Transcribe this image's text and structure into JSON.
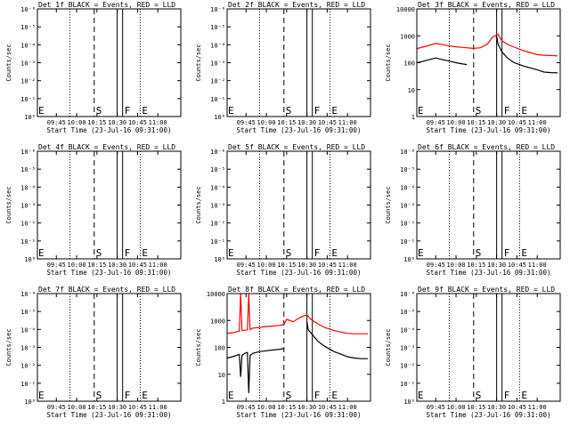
{
  "chart_data": [
    {
      "type": "line",
      "title": "Det 1f BLACK = Events, RED = LLD",
      "ylabel": "Counts/sec",
      "xlabel": "Start Time (23-Jul-16 09:31:00)",
      "xlim": [
        "09:31",
        "11:17"
      ],
      "y_scale": "log",
      "ylim": [
        1,
        10000
      ],
      "y_tick_labels": [
        "10⁰",
        "10⁻¹",
        "10⁻²",
        "10⁻³",
        "10⁻⁴",
        "10⁻⁵",
        "10⁻⁶"
      ],
      "x_tick_labels": [
        "09:45",
        "10:00",
        "10:15",
        "10:30",
        "10:45",
        "11:00"
      ],
      "markers": [
        {
          "time": "09:31",
          "label": "E",
          "style": "none"
        },
        {
          "time": "09:55",
          "label": "",
          "style": "dotted"
        },
        {
          "time": "10:13",
          "label": "S",
          "style": "dashed"
        },
        {
          "time": "10:30",
          "label": "",
          "style": "solid"
        },
        {
          "time": "10:34",
          "label": "F",
          "style": "solid"
        },
        {
          "time": "10:47",
          "label": "E",
          "style": "dotted"
        }
      ],
      "series": []
    },
    {
      "type": "line",
      "title": "Det 2f BLACK = Events, RED = LLD",
      "ylabel": "Counts/sec",
      "xlabel": "Start Time (23-Jul-16 09:31:00)",
      "xlim": [
        "09:31",
        "11:17"
      ],
      "y_scale": "log",
      "ylim": [
        1,
        10000
      ],
      "y_tick_labels": [
        "10⁰",
        "10⁻¹",
        "10⁻²",
        "10⁻³",
        "10⁻⁴",
        "10⁻⁵",
        "10⁻⁶"
      ],
      "x_tick_labels": [
        "09:45",
        "10:00",
        "10:15",
        "10:30",
        "10:45",
        "11:00"
      ],
      "markers": [
        {
          "time": "09:31",
          "label": "E",
          "style": "none"
        },
        {
          "time": "09:55",
          "label": "",
          "style": "dotted"
        },
        {
          "time": "10:13",
          "label": "S",
          "style": "dashed"
        },
        {
          "time": "10:30",
          "label": "",
          "style": "solid"
        },
        {
          "time": "10:34",
          "label": "F",
          "style": "solid"
        },
        {
          "time": "10:47",
          "label": "E",
          "style": "dotted"
        }
      ],
      "series": []
    },
    {
      "type": "line",
      "title": "Det 3f BLACK = Events, RED = LLD",
      "ylabel": "Counts/sec",
      "xlabel": "Start Time (23-Jul-16 09:31:00)",
      "xlim": [
        "09:31",
        "11:17"
      ],
      "y_scale": "log",
      "ylim": [
        1,
        10000
      ],
      "y_tick_labels": [
        "1",
        "10",
        "100",
        "1000",
        "10000"
      ],
      "x_tick_labels": [
        "09:45",
        "10:00",
        "10:15",
        "10:30",
        "10:45",
        "11:00"
      ],
      "markers": [
        {
          "time": "09:31",
          "label": "E",
          "style": "none"
        },
        {
          "time": "09:55",
          "label": "",
          "style": "dotted"
        },
        {
          "time": "10:13",
          "label": "S",
          "style": "dashed"
        },
        {
          "time": "10:30",
          "label": "",
          "style": "solid"
        },
        {
          "time": "10:34",
          "label": "F",
          "style": "solid"
        },
        {
          "time": "10:47",
          "label": "E",
          "style": "dotted"
        }
      ],
      "series": [
        {
          "color": "#ff0000",
          "x": [
            "09:31",
            "09:35",
            "09:40",
            "09:45",
            "09:50",
            "09:55",
            "10:00",
            "10:05",
            "10:10",
            "10:13",
            "10:18",
            "10:23",
            "10:27",
            "10:29",
            "10:31",
            "10:34",
            "10:38",
            "10:43",
            "10:50",
            "11:00",
            "11:05",
            "11:10",
            "11:15"
          ],
          "y": [
            330,
            380,
            440,
            520,
            470,
            420,
            390,
            370,
            350,
            340,
            360,
            480,
            900,
            1000,
            1150,
            650,
            480,
            380,
            280,
            200,
            190,
            185,
            180
          ]
        },
        {
          "color": "#000000",
          "x": [
            "09:31",
            "09:35",
            "09:40",
            "09:45",
            "09:50",
            "09:55",
            "10:00",
            "10:05",
            "10:08"
          ],
          "y": [
            100,
            110,
            130,
            150,
            130,
            115,
            100,
            90,
            85
          ]
        },
        {
          "color": "#000000",
          "x": [
            "10:30",
            "10:31",
            "10:34",
            "10:38",
            "10:43",
            "10:50",
            "11:00",
            "11:05",
            "11:10",
            "11:15"
          ],
          "y": [
            1000,
            500,
            250,
            150,
            100,
            75,
            55,
            45,
            43,
            42
          ]
        }
      ]
    },
    {
      "type": "line",
      "title": "Det 4f BLACK = Events, RED = LLD",
      "ylabel": "Counts/sec",
      "xlabel": "Start Time (23-Jul-16 09:31:00)",
      "xlim": [
        "09:31",
        "11:17"
      ],
      "y_scale": "log",
      "ylim": [
        1,
        10000
      ],
      "y_tick_labels": [
        "10⁰",
        "10⁻¹",
        "10⁻²",
        "10⁻³",
        "10⁻⁴",
        "10⁻⁵",
        "10⁻⁶"
      ],
      "x_tick_labels": [
        "09:45",
        "10:00",
        "10:15",
        "10:30",
        "10:45",
        "11:00"
      ],
      "markers": [
        {
          "time": "09:31",
          "label": "E",
          "style": "none"
        },
        {
          "time": "09:55",
          "label": "",
          "style": "dotted"
        },
        {
          "time": "10:13",
          "label": "S",
          "style": "dashed"
        },
        {
          "time": "10:30",
          "label": "",
          "style": "solid"
        },
        {
          "time": "10:34",
          "label": "F",
          "style": "solid"
        },
        {
          "time": "10:47",
          "label": "E",
          "style": "dotted"
        }
      ],
      "series": []
    },
    {
      "type": "line",
      "title": "Det 5f BLACK = Events, RED = LLD",
      "ylabel": "Counts/sec",
      "xlabel": "Start Time (23-Jul-16 09:31:00)",
      "xlim": [
        "09:31",
        "11:17"
      ],
      "y_scale": "log",
      "ylim": [
        1,
        10000
      ],
      "y_tick_labels": [
        "10⁰",
        "10⁻¹",
        "10⁻²",
        "10⁻³",
        "10⁻⁴",
        "10⁻⁵",
        "10⁻⁶"
      ],
      "x_tick_labels": [
        "09:45",
        "10:00",
        "10:15",
        "10:30",
        "10:45",
        "11:00"
      ],
      "markers": [
        {
          "time": "09:31",
          "label": "E",
          "style": "none"
        },
        {
          "time": "09:55",
          "label": "",
          "style": "dotted"
        },
        {
          "time": "10:13",
          "label": "S",
          "style": "dashed"
        },
        {
          "time": "10:30",
          "label": "",
          "style": "solid"
        },
        {
          "time": "10:34",
          "label": "F",
          "style": "solid"
        },
        {
          "time": "10:47",
          "label": "E",
          "style": "dotted"
        }
      ],
      "series": []
    },
    {
      "type": "line",
      "title": "Det 6f BLACK = Events, RED = LLD",
      "ylabel": "Counts/sec",
      "xlabel": "Start Time (23-Jul-16 09:31:00)",
      "xlim": [
        "09:31",
        "11:17"
      ],
      "y_scale": "log",
      "ylim": [
        1,
        10000
      ],
      "y_tick_labels": [
        "10⁰",
        "10⁻¹",
        "10⁻²",
        "10⁻³",
        "10⁻⁴",
        "10⁻⁵",
        "10⁻⁶"
      ],
      "x_tick_labels": [
        "09:45",
        "10:00",
        "10:15",
        "10:30",
        "10:45",
        "11:00"
      ],
      "markers": [
        {
          "time": "09:31",
          "label": "E",
          "style": "none"
        },
        {
          "time": "09:55",
          "label": "",
          "style": "dotted"
        },
        {
          "time": "10:13",
          "label": "S",
          "style": "dashed"
        },
        {
          "time": "10:30",
          "label": "",
          "style": "solid"
        },
        {
          "time": "10:34",
          "label": "F",
          "style": "solid"
        },
        {
          "time": "10:47",
          "label": "E",
          "style": "dotted"
        }
      ],
      "series": []
    },
    {
      "type": "line",
      "title": "Det 7f BLACK = Events, RED = LLD",
      "ylabel": "Counts/sec",
      "xlabel": "Start Time (23-Jul-16 09:31:00)",
      "xlim": [
        "09:31",
        "11:17"
      ],
      "y_scale": "log",
      "ylim": [
        1,
        10000
      ],
      "y_tick_labels": [
        "10⁰",
        "10⁻¹",
        "10⁻²",
        "10⁻³",
        "10⁻⁴",
        "10⁻⁵",
        "10⁻⁶"
      ],
      "x_tick_labels": [
        "09:45",
        "10:00",
        "10:15",
        "10:30",
        "10:45",
        "11:00"
      ],
      "markers": [
        {
          "time": "09:31",
          "label": "E",
          "style": "none"
        },
        {
          "time": "09:55",
          "label": "",
          "style": "dotted"
        },
        {
          "time": "10:13",
          "label": "S",
          "style": "dashed"
        },
        {
          "time": "10:30",
          "label": "",
          "style": "solid"
        },
        {
          "time": "10:34",
          "label": "F",
          "style": "solid"
        },
        {
          "time": "10:47",
          "label": "E",
          "style": "dotted"
        }
      ],
      "series": []
    },
    {
      "type": "line",
      "title": "Det 8f BLACK = Events, RED = LLD",
      "ylabel": "Counts/sec",
      "xlabel": "Start Time (23-Jul-16 09:31:00)",
      "xlim": [
        "09:31",
        "11:17"
      ],
      "y_scale": "log",
      "ylim": [
        1,
        10000
      ],
      "y_tick_labels": [
        "1",
        "10",
        "100",
        "1000",
        "10000"
      ],
      "x_tick_labels": [
        "09:45",
        "10:00",
        "10:15",
        "10:30",
        "10:45",
        "11:00"
      ],
      "markers": [
        {
          "time": "09:31",
          "label": "E",
          "style": "none"
        },
        {
          "time": "09:55",
          "label": "",
          "style": "dotted"
        },
        {
          "time": "10:13",
          "label": "S",
          "style": "dashed"
        },
        {
          "time": "10:30",
          "label": "",
          "style": "solid"
        },
        {
          "time": "10:34",
          "label": "F",
          "style": "solid"
        },
        {
          "time": "10:47",
          "label": "E",
          "style": "dotted"
        }
      ],
      "series": [
        {
          "color": "#ff0000",
          "x": [
            "09:31",
            "09:35",
            "09:40",
            "09:41",
            "09:42",
            "09:44",
            "09:46",
            "09:47",
            "09:48",
            "09:50",
            "09:55",
            "10:00",
            "10:05",
            "10:10",
            "10:13",
            "10:15",
            "10:20",
            "10:25",
            "10:28",
            "10:30",
            "10:33",
            "10:38",
            "10:43",
            "10:50",
            "11:00",
            "11:05",
            "11:10",
            "11:15"
          ],
          "y": [
            330,
            350,
            400,
            10000,
            420,
            430,
            450,
            10000,
            460,
            520,
            550,
            600,
            620,
            660,
            700,
            1100,
            900,
            1300,
            1500,
            1600,
            1100,
            750,
            550,
            420,
            330,
            320,
            320,
            320
          ]
        },
        {
          "color": "#000000",
          "x": [
            "09:31",
            "09:35",
            "09:40",
            "09:41",
            "09:42",
            "09:44",
            "09:46",
            "09:47",
            "09:48",
            "09:50",
            "09:55",
            "10:00",
            "10:05",
            "10:10",
            "10:13"
          ],
          "y": [
            40,
            45,
            55,
            8,
            50,
            60,
            65,
            2,
            50,
            60,
            70,
            75,
            80,
            85,
            90
          ]
        },
        {
          "color": "#000000",
          "x": [
            "10:30",
            "10:31",
            "10:34",
            "10:38",
            "10:43",
            "10:50",
            "11:00",
            "11:05",
            "11:10",
            "11:15"
          ],
          "y": [
            900,
            450,
            300,
            170,
            110,
            70,
            45,
            40,
            38,
            38
          ]
        }
      ]
    },
    {
      "type": "line",
      "title": "Det 9f BLACK = Events, RED = LLD",
      "ylabel": "Counts/sec",
      "xlabel": "Start Time (23-Jul-16 09:31:00)",
      "xlim": [
        "09:31",
        "11:17"
      ],
      "y_scale": "log",
      "ylim": [
        1,
        10000
      ],
      "y_tick_labels": [
        "10⁰",
        "10⁻¹",
        "10⁻²",
        "10⁻³",
        "10⁻⁴",
        "10⁻⁵",
        "10⁻⁶"
      ],
      "x_tick_labels": [
        "09:45",
        "10:00",
        "10:15",
        "10:30",
        "10:45",
        "11:00"
      ],
      "markers": [
        {
          "time": "09:31",
          "label": "E",
          "style": "none"
        },
        {
          "time": "09:55",
          "label": "",
          "style": "dotted"
        },
        {
          "time": "10:13",
          "label": "S",
          "style": "dashed"
        },
        {
          "time": "10:30",
          "label": "",
          "style": "solid"
        },
        {
          "time": "10:34",
          "label": "F",
          "style": "solid"
        },
        {
          "time": "10:47",
          "label": "E",
          "style": "dotted"
        }
      ],
      "series": []
    }
  ]
}
